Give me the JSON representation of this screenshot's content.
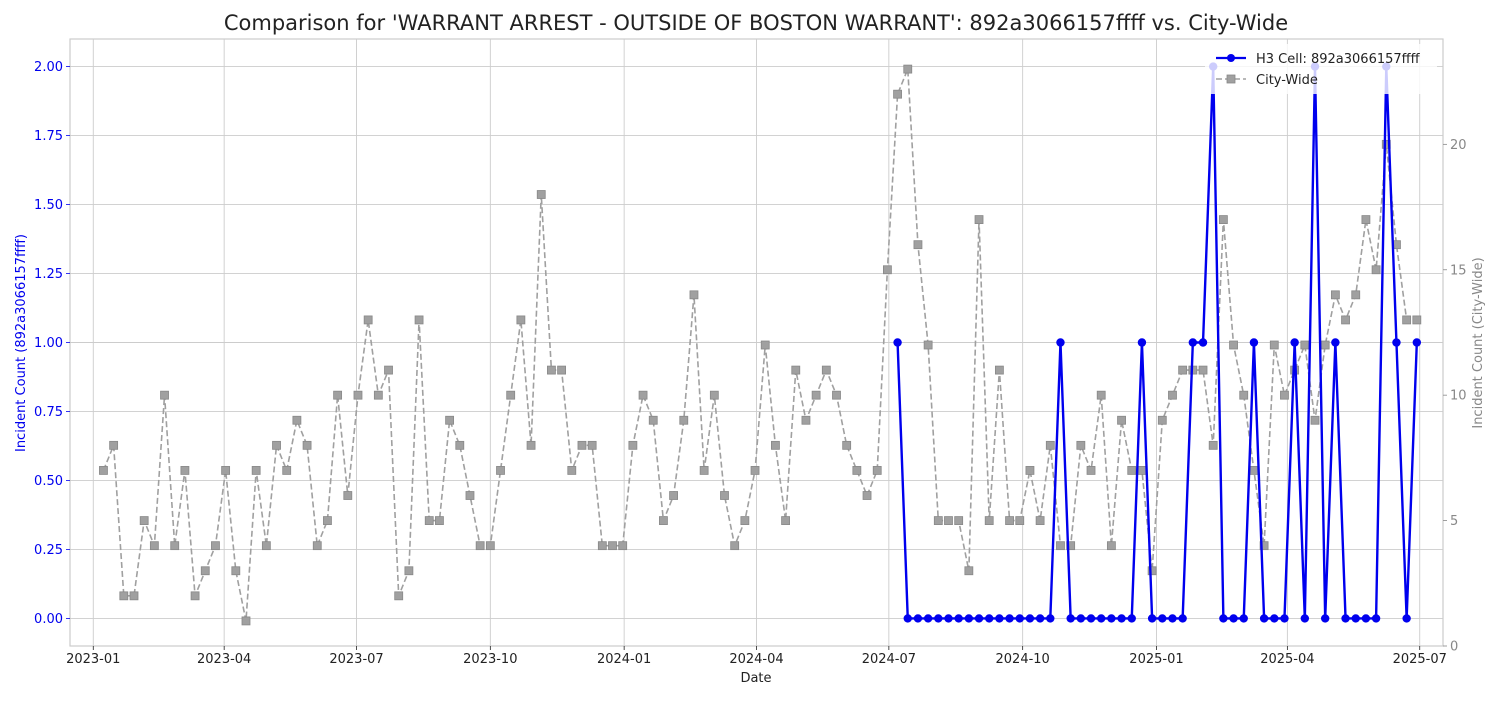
{
  "chart_data": {
    "type": "line",
    "title": "Comparison for 'WARRANT ARREST - OUTSIDE OF BOSTON WARRANT': 892a3066157ffff vs. City-Wide",
    "xlabel": "Date",
    "ylabel_left": "Incident Count (892a3066157ffff)",
    "ylabel_right": "Incident Count (City-Wide)",
    "x_ticks": [
      "2023-01",
      "2023-04",
      "2023-07",
      "2023-10",
      "2024-01",
      "2024-04",
      "2024-07",
      "2024-10",
      "2025-01",
      "2025-04",
      "2025-07"
    ],
    "x_tick_dates": [
      "2023-01-01",
      "2023-04-01",
      "2023-07-01",
      "2023-10-01",
      "2024-01-01",
      "2024-04-01",
      "2024-07-01",
      "2024-10-01",
      "2025-01-01",
      "2025-04-01",
      "2025-07-01"
    ],
    "x_range": [
      "2022-12-16",
      "2025-07-17"
    ],
    "y_left_ticks": [
      "0.00",
      "0.25",
      "0.50",
      "0.75",
      "1.00",
      "1.25",
      "1.50",
      "1.75",
      "2.00"
    ],
    "y_left_range": [
      -0.1,
      2.1
    ],
    "y_right_ticks": [
      "0",
      "5",
      "10",
      "15",
      "20"
    ],
    "y_right_range": [
      0,
      24.2
    ],
    "grid": true,
    "legend_position": "top-right",
    "colors": {
      "cell": "#0000ee",
      "city": "#a0a0a0",
      "city_marker_edge": "#888888",
      "left_axis": "#0000ee",
      "right_axis": "#888888",
      "grid": "#cccccc",
      "frame": "#cccccc",
      "text": "#222222"
    },
    "series": [
      {
        "name": "H3 Cell: 892a3066157ffff",
        "axis": "left",
        "style": "solid-circle",
        "points": [
          [
            "2024-07-07",
            1
          ],
          [
            "2024-07-14",
            0
          ],
          [
            "2024-07-21",
            0
          ],
          [
            "2024-07-28",
            0
          ],
          [
            "2024-08-04",
            0
          ],
          [
            "2024-08-11",
            0
          ],
          [
            "2024-08-18",
            0
          ],
          [
            "2024-08-25",
            0
          ],
          [
            "2024-09-01",
            0
          ],
          [
            "2024-09-08",
            0
          ],
          [
            "2024-09-15",
            0
          ],
          [
            "2024-09-22",
            0
          ],
          [
            "2024-09-29",
            0
          ],
          [
            "2024-10-06",
            0
          ],
          [
            "2024-10-13",
            0
          ],
          [
            "2024-10-20",
            0
          ],
          [
            "2024-10-27",
            1
          ],
          [
            "2024-11-03",
            0
          ],
          [
            "2024-11-10",
            0
          ],
          [
            "2024-11-17",
            0
          ],
          [
            "2024-11-24",
            0
          ],
          [
            "2024-12-01",
            0
          ],
          [
            "2024-12-08",
            0
          ],
          [
            "2024-12-15",
            0
          ],
          [
            "2024-12-22",
            1
          ],
          [
            "2024-12-29",
            0
          ],
          [
            "2025-01-05",
            0
          ],
          [
            "2025-01-12",
            0
          ],
          [
            "2025-01-19",
            0
          ],
          [
            "2025-01-26",
            1
          ],
          [
            "2025-02-02",
            1
          ],
          [
            "2025-02-09",
            2
          ],
          [
            "2025-02-16",
            0
          ],
          [
            "2025-02-23",
            0
          ],
          [
            "2025-03-02",
            0
          ],
          [
            "2025-03-09",
            1
          ],
          [
            "2025-03-16",
            0
          ],
          [
            "2025-03-23",
            0
          ],
          [
            "2025-03-30",
            0
          ],
          [
            "2025-04-06",
            1
          ],
          [
            "2025-04-13",
            0
          ],
          [
            "2025-04-20",
            2
          ],
          [
            "2025-04-27",
            0
          ],
          [
            "2025-05-04",
            1
          ],
          [
            "2025-05-11",
            0
          ],
          [
            "2025-05-18",
            0
          ],
          [
            "2025-05-25",
            0
          ],
          [
            "2025-06-01",
            0
          ],
          [
            "2025-06-08",
            2
          ],
          [
            "2025-06-15",
            1
          ],
          [
            "2025-06-22",
            0
          ],
          [
            "2025-06-29",
            1
          ]
        ]
      },
      {
        "name": "City-Wide",
        "axis": "right",
        "style": "dashed-square",
        "points": [
          [
            "2023-01-08",
            7
          ],
          [
            "2023-01-15",
            8
          ],
          [
            "2023-01-22",
            2
          ],
          [
            "2023-01-29",
            2
          ],
          [
            "2023-02-05",
            5
          ],
          [
            "2023-02-12",
            4
          ],
          [
            "2023-02-19",
            10
          ],
          [
            "2023-02-26",
            4
          ],
          [
            "2023-03-05",
            7
          ],
          [
            "2023-03-12",
            2
          ],
          [
            "2023-03-19",
            3
          ],
          [
            "2023-03-26",
            4
          ],
          [
            "2023-04-02",
            7
          ],
          [
            "2023-04-09",
            3
          ],
          [
            "2023-04-16",
            1
          ],
          [
            "2023-04-23",
            7
          ],
          [
            "2023-04-30",
            4
          ],
          [
            "2023-05-07",
            8
          ],
          [
            "2023-05-14",
            7
          ],
          [
            "2023-05-21",
            9
          ],
          [
            "2023-05-28",
            8
          ],
          [
            "2023-06-04",
            4
          ],
          [
            "2023-06-11",
            5
          ],
          [
            "2023-06-18",
            10
          ],
          [
            "2023-06-25",
            6
          ],
          [
            "2023-07-02",
            10
          ],
          [
            "2023-07-09",
            13
          ],
          [
            "2023-07-16",
            10
          ],
          [
            "2023-07-23",
            11
          ],
          [
            "2023-07-30",
            2
          ],
          [
            "2023-08-06",
            3
          ],
          [
            "2023-08-13",
            13
          ],
          [
            "2023-08-20",
            5
          ],
          [
            "2023-08-27",
            5
          ],
          [
            "2023-09-03",
            9
          ],
          [
            "2023-09-10",
            8
          ],
          [
            "2023-09-17",
            6
          ],
          [
            "2023-09-24",
            4
          ],
          [
            "2023-10-01",
            4
          ],
          [
            "2023-10-08",
            7
          ],
          [
            "2023-10-15",
            10
          ],
          [
            "2023-10-22",
            13
          ],
          [
            "2023-10-29",
            8
          ],
          [
            "2023-11-05",
            18
          ],
          [
            "2023-11-12",
            11
          ],
          [
            "2023-11-19",
            11
          ],
          [
            "2023-11-26",
            7
          ],
          [
            "2023-12-03",
            8
          ],
          [
            "2023-12-10",
            8
          ],
          [
            "2023-12-17",
            4
          ],
          [
            "2023-12-24",
            4
          ],
          [
            "2023-12-31",
            4
          ],
          [
            "2024-01-07",
            8
          ],
          [
            "2024-01-14",
            10
          ],
          [
            "2024-01-21",
            9
          ],
          [
            "2024-01-28",
            5
          ],
          [
            "2024-02-04",
            6
          ],
          [
            "2024-02-11",
            9
          ],
          [
            "2024-02-18",
            14
          ],
          [
            "2024-02-25",
            7
          ],
          [
            "2024-03-03",
            10
          ],
          [
            "2024-03-10",
            6
          ],
          [
            "2024-03-17",
            4
          ],
          [
            "2024-03-24",
            5
          ],
          [
            "2024-03-31",
            7
          ],
          [
            "2024-04-07",
            12
          ],
          [
            "2024-04-14",
            8
          ],
          [
            "2024-04-21",
            5
          ],
          [
            "2024-04-28",
            11
          ],
          [
            "2024-05-05",
            9
          ],
          [
            "2024-05-12",
            10
          ],
          [
            "2024-05-19",
            11
          ],
          [
            "2024-05-26",
            10
          ],
          [
            "2024-06-02",
            8
          ],
          [
            "2024-06-09",
            7
          ],
          [
            "2024-06-16",
            6
          ],
          [
            "2024-06-23",
            7
          ],
          [
            "2024-06-30",
            15
          ],
          [
            "2024-07-07",
            22
          ],
          [
            "2024-07-14",
            23
          ],
          [
            "2024-07-21",
            16
          ],
          [
            "2024-07-28",
            12
          ],
          [
            "2024-08-04",
            5
          ],
          [
            "2024-08-11",
            5
          ],
          [
            "2024-08-18",
            5
          ],
          [
            "2024-08-25",
            3
          ],
          [
            "2024-09-01",
            17
          ],
          [
            "2024-09-08",
            5
          ],
          [
            "2024-09-15",
            11
          ],
          [
            "2024-09-22",
            5
          ],
          [
            "2024-09-29",
            5
          ],
          [
            "2024-10-06",
            7
          ],
          [
            "2024-10-13",
            5
          ],
          [
            "2024-10-20",
            8
          ],
          [
            "2024-10-27",
            4
          ],
          [
            "2024-11-03",
            4
          ],
          [
            "2024-11-10",
            8
          ],
          [
            "2024-11-17",
            7
          ],
          [
            "2024-11-24",
            10
          ],
          [
            "2024-12-01",
            4
          ],
          [
            "2024-12-08",
            9
          ],
          [
            "2024-12-15",
            7
          ],
          [
            "2024-12-22",
            7
          ],
          [
            "2024-12-29",
            3
          ],
          [
            "2025-01-05",
            9
          ],
          [
            "2025-01-12",
            10
          ],
          [
            "2025-01-19",
            11
          ],
          [
            "2025-01-26",
            11
          ],
          [
            "2025-02-02",
            11
          ],
          [
            "2025-02-09",
            8
          ],
          [
            "2025-02-16",
            17
          ],
          [
            "2025-02-23",
            12
          ],
          [
            "2025-03-02",
            10
          ],
          [
            "2025-03-09",
            7
          ],
          [
            "2025-03-16",
            4
          ],
          [
            "2025-03-23",
            12
          ],
          [
            "2025-03-30",
            10
          ],
          [
            "2025-04-06",
            11
          ],
          [
            "2025-04-13",
            12
          ],
          [
            "2025-04-20",
            9
          ],
          [
            "2025-04-27",
            12
          ],
          [
            "2025-05-04",
            14
          ],
          [
            "2025-05-11",
            13
          ],
          [
            "2025-05-18",
            14
          ],
          [
            "2025-05-25",
            17
          ],
          [
            "2025-06-01",
            15
          ],
          [
            "2025-06-08",
            20
          ],
          [
            "2025-06-15",
            16
          ],
          [
            "2025-06-22",
            13
          ],
          [
            "2025-06-29",
            13
          ]
        ]
      }
    ]
  }
}
